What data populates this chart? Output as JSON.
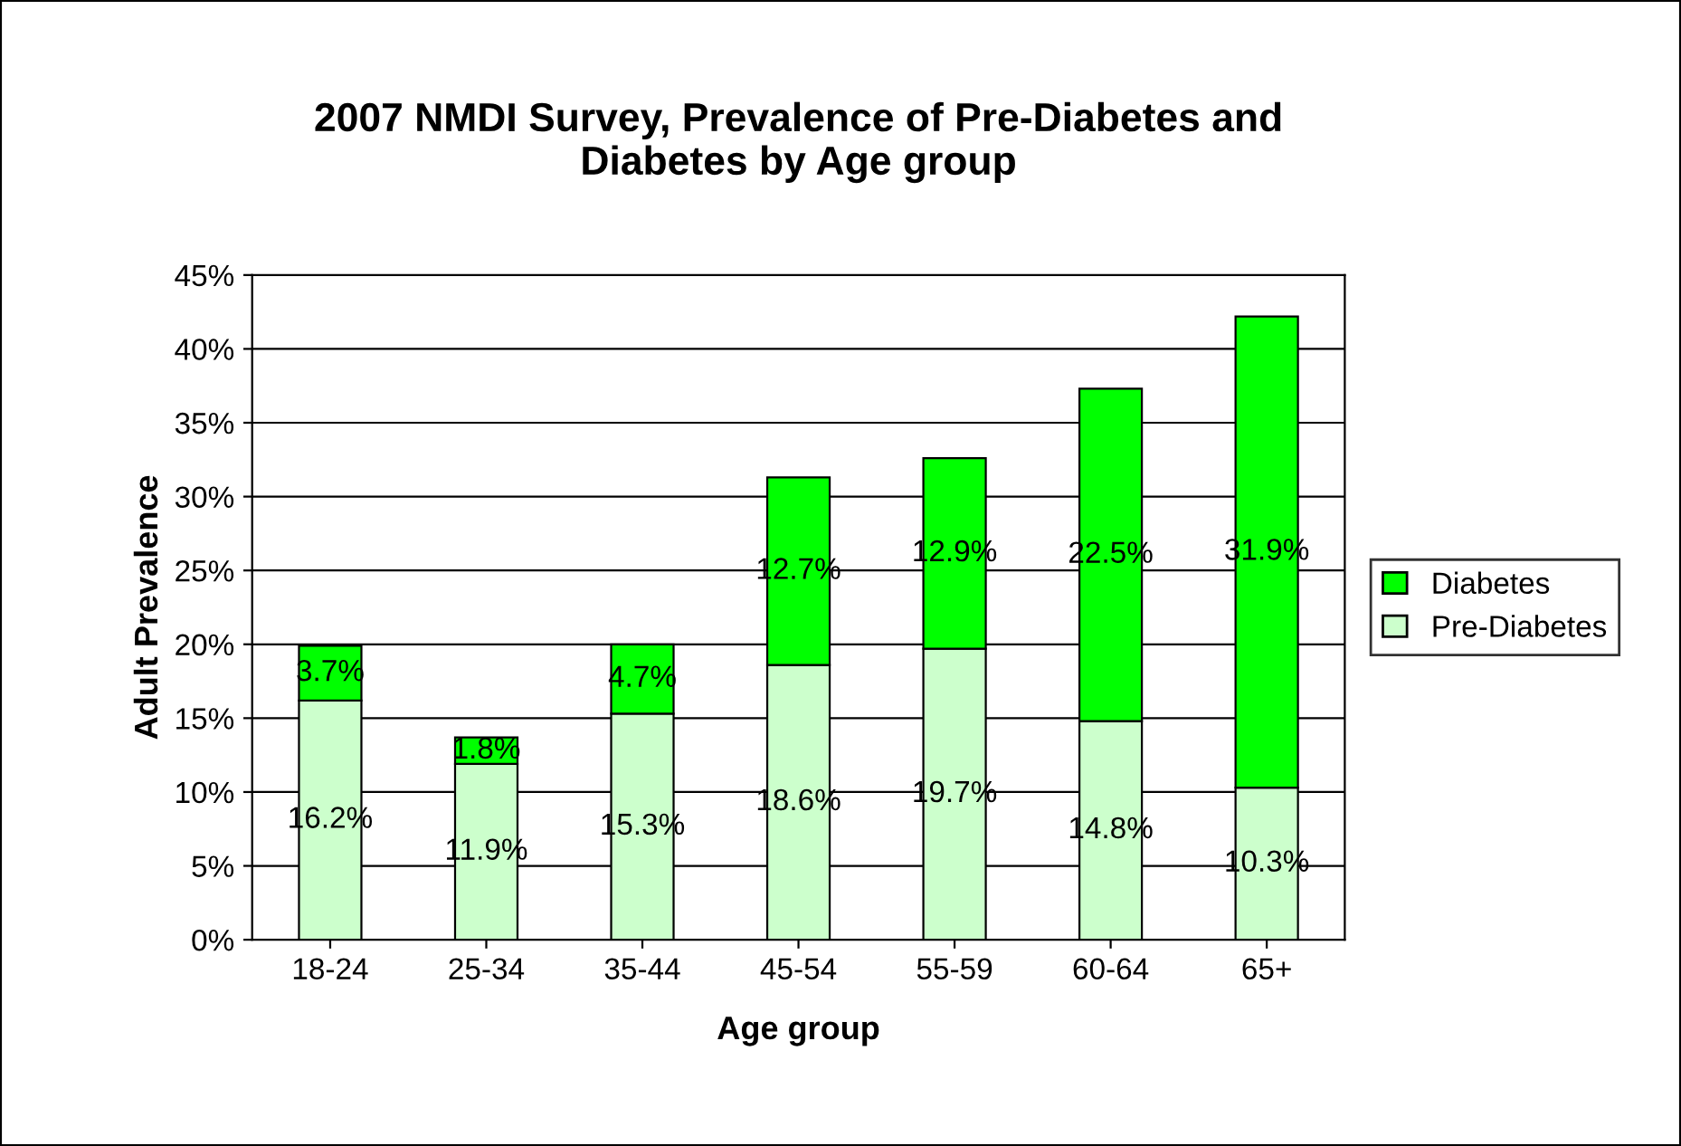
{
  "chart_data": {
    "type": "bar",
    "title": "2007 NMDI Survey, Prevalence of Pre-Diabetes and\nDiabetes by Age group",
    "xlabel": "Age group",
    "ylabel": "Adult Prevalence",
    "categories": [
      "18-24",
      "25-34",
      "35-44",
      "45-54",
      "55-59",
      "60-64",
      "65+"
    ],
    "stacked": true,
    "series": [
      {
        "name": "Pre-Diabetes",
        "color": "#ccffcc",
        "values": [
          16.2,
          11.9,
          15.3,
          18.6,
          19.7,
          14.8,
          10.3
        ],
        "value_labels": [
          "16.2%",
          "11.9%",
          "15.3%",
          "18.6%",
          "19.7%",
          "14.8%",
          "10.3%"
        ]
      },
      {
        "name": "Diabetes",
        "color": "#00ff00",
        "values": [
          3.7,
          1.8,
          4.7,
          12.7,
          12.9,
          22.5,
          31.9
        ],
        "value_labels": [
          "3.7%",
          "1.8%",
          "4.7%",
          "12.7%",
          "12.9%",
          "22.5%",
          "31.9%"
        ]
      }
    ],
    "ylim": [
      0,
      45
    ],
    "yticks": [
      {
        "value": 0,
        "label": "0%"
      },
      {
        "value": 5,
        "label": "5%"
      },
      {
        "value": 10,
        "label": "10%"
      },
      {
        "value": 15,
        "label": "15%"
      },
      {
        "value": 20,
        "label": "20%"
      },
      {
        "value": 25,
        "label": "25%"
      },
      {
        "value": 30,
        "label": "30%"
      },
      {
        "value": 35,
        "label": "35%"
      },
      {
        "value": 40,
        "label": "40%"
      },
      {
        "value": 45,
        "label": "45%"
      }
    ],
    "grid": "y",
    "legend": "right"
  }
}
